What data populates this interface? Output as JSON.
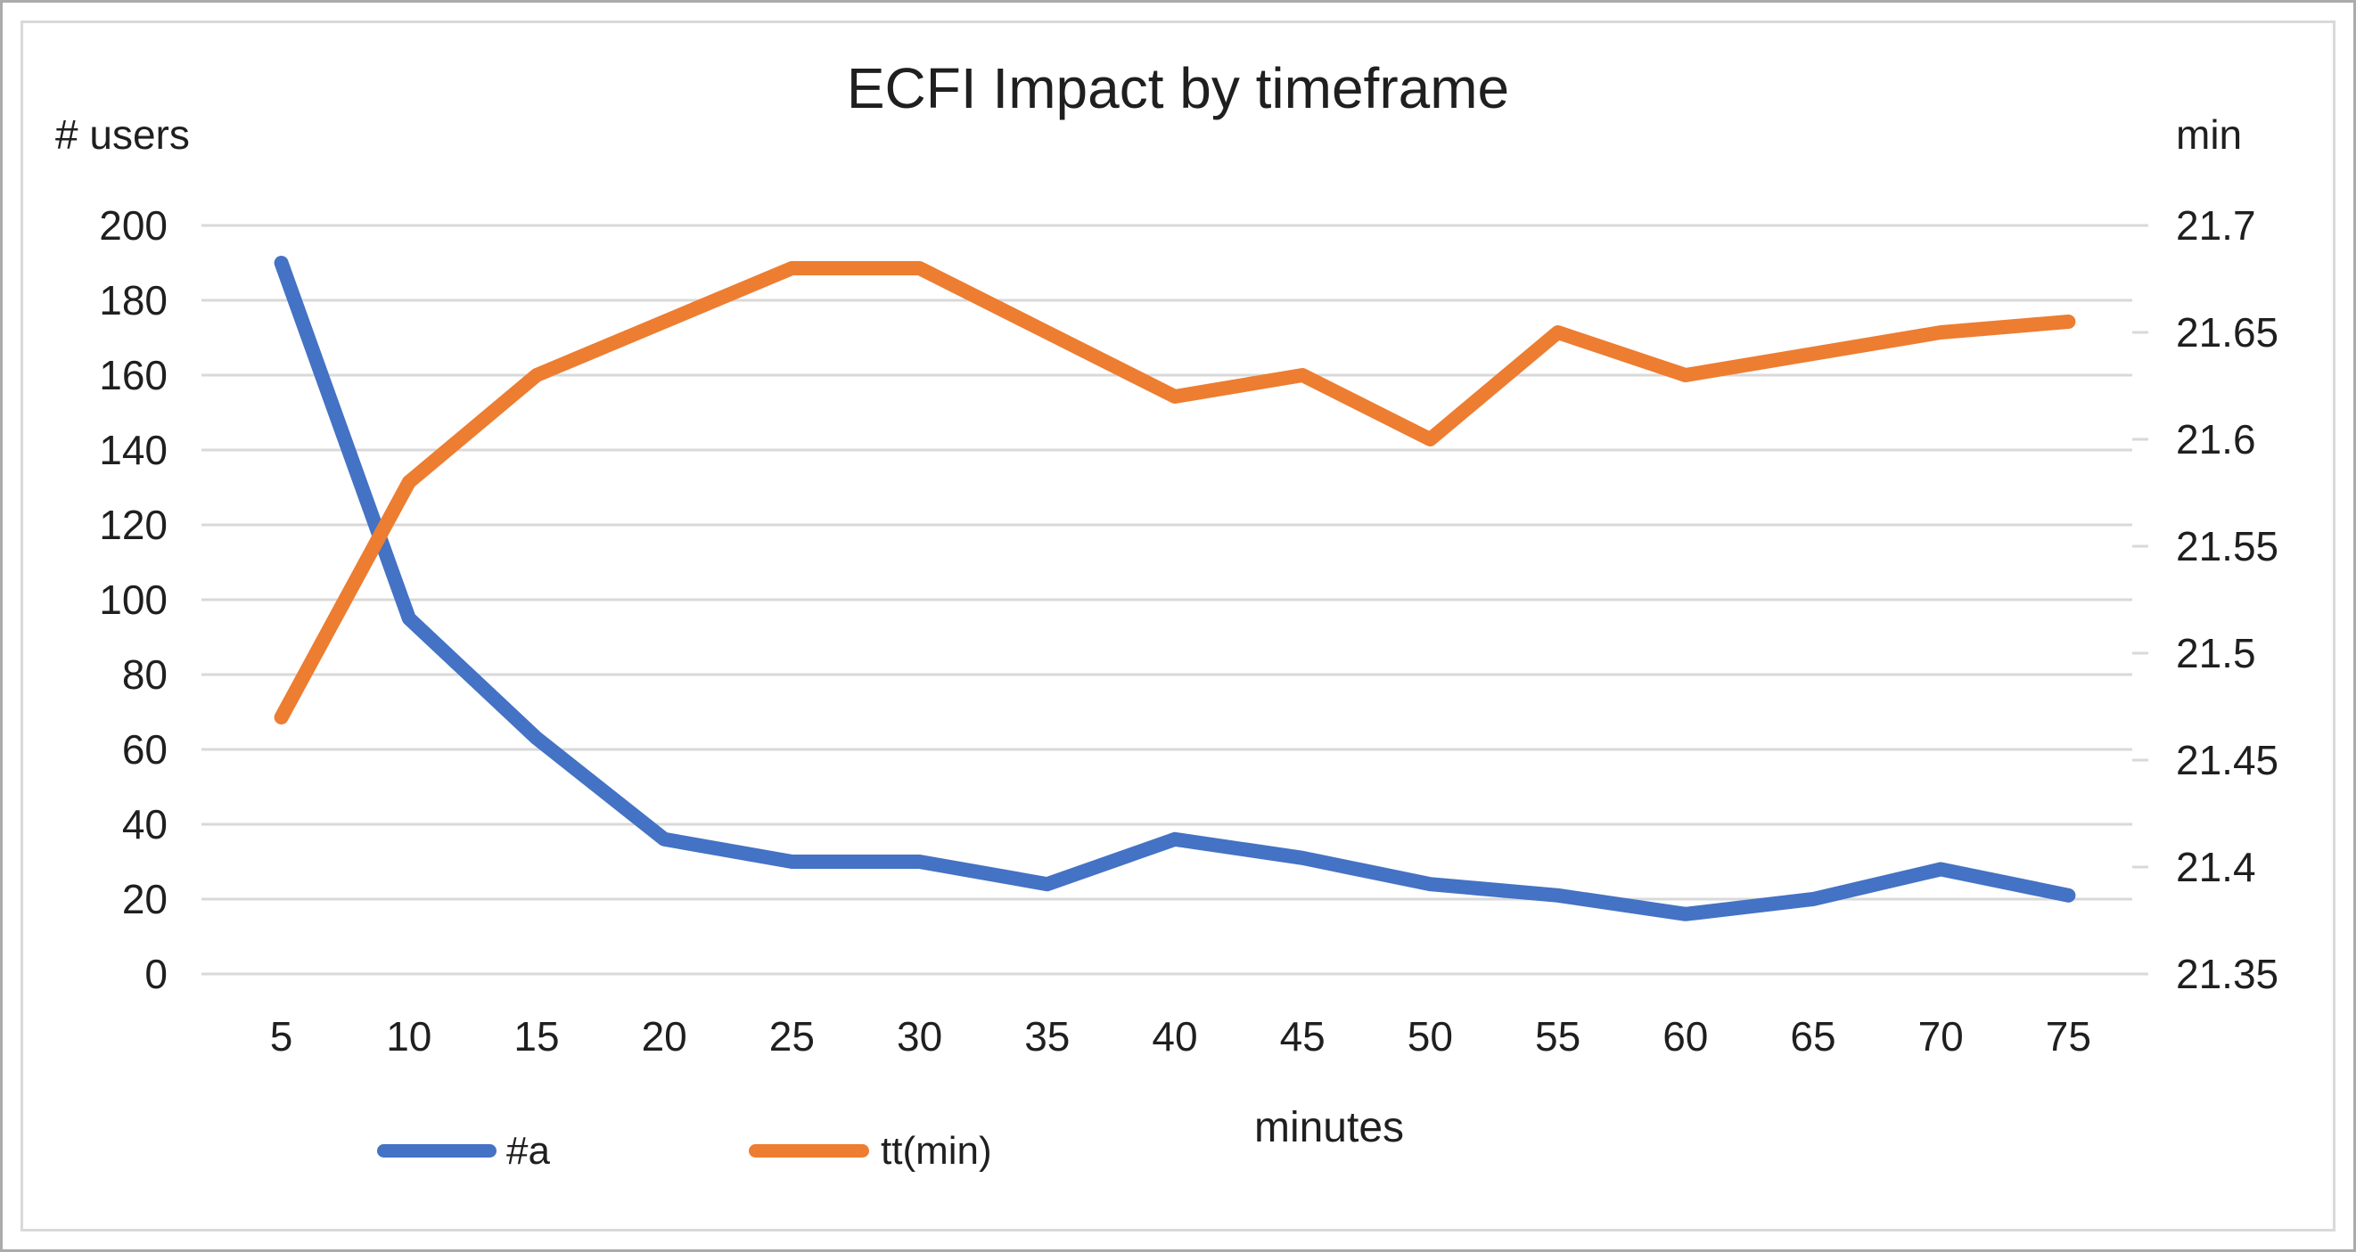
{
  "window": {
    "background": "#ffffff",
    "outer_border_color": "#ababab",
    "chart_border_color": "#d9d9d9"
  },
  "chart_data": {
    "type": "line",
    "title": "ECFI Impact by timeframe",
    "x_axis": {
      "title": "minutes",
      "categories": [
        "5",
        "10",
        "15",
        "20",
        "25",
        "30",
        "35",
        "40",
        "45",
        "50",
        "55",
        "60",
        "65",
        "70",
        "75"
      ]
    },
    "y_left_axis": {
      "unit_label": "# users",
      "min": 0,
      "max": 200,
      "ticks": [
        "200",
        "180",
        "160",
        "140",
        "120",
        "100",
        "80",
        "60",
        "40",
        "20",
        "0"
      ]
    },
    "y_right_axis": {
      "unit_label": "min",
      "min": 21.35,
      "max": 21.7,
      "ticks": [
        "21.7",
        "21.65",
        "21.6",
        "21.55",
        "21.5",
        "21.45",
        "21.4",
        "21.35"
      ]
    },
    "grid": {
      "horizontal": true,
      "vertical": false,
      "color": "#d9d9d9"
    },
    "legend_position": "bottom-left",
    "series": [
      {
        "name": "#a",
        "axis": "left",
        "color": "#4472C4",
        "values": [
          190,
          95,
          63,
          36,
          30,
          30,
          24,
          36,
          31,
          24,
          21,
          16,
          20,
          28,
          21
        ]
      },
      {
        "name": "tt(min)",
        "axis": "right",
        "color": "#ED7D31",
        "values": [
          21.47,
          21.58,
          21.63,
          21.655,
          21.68,
          21.68,
          21.65,
          21.62,
          21.63,
          21.6,
          21.65,
          21.63,
          21.64,
          21.65,
          21.655
        ]
      }
    ]
  }
}
